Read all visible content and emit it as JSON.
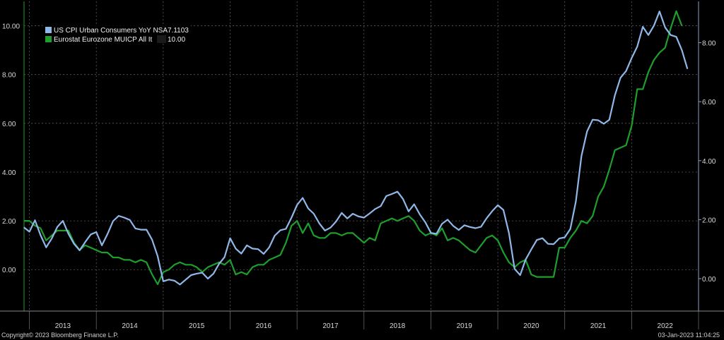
{
  "chart_data": {
    "type": "line",
    "left_axis": {
      "ylim": [
        -1.7,
        11.0
      ],
      "ticks": [
        0,
        2,
        4,
        6,
        8,
        10
      ],
      "tick_labels": [
        "0.00",
        "2.00",
        "4.00",
        "6.00",
        "8.00",
        "10.00"
      ]
    },
    "right_axis": {
      "ylim": [
        -1.1,
        9.4
      ],
      "ticks": [
        0,
        2,
        4,
        6,
        8
      ],
      "tick_labels": [
        "0.00",
        "2.00",
        "4.00",
        "6.00",
        "8.00"
      ]
    },
    "x_range": [
      2012.92,
      2023.0
    ],
    "x_labels": [
      "2013",
      "2014",
      "2015",
      "2016",
      "2017",
      "2018",
      "2019",
      "2020",
      "2021",
      "2022"
    ],
    "grid": true,
    "legend_position": "top-left",
    "series": [
      {
        "name": "US CPI Urban Consumers YoY NSA",
        "last_value": "7.1103",
        "color": "#8fb8e8",
        "axis": "right",
        "start": 2012.917,
        "step": 0.0833333,
        "values": [
          1.74,
          1.59,
          1.98,
          1.47,
          1.06,
          1.36,
          1.75,
          1.96,
          1.52,
          1.18,
          0.96,
          1.24,
          1.5,
          1.58,
          1.13,
          1.51,
          1.95,
          2.13,
          2.07,
          1.99,
          1.7,
          1.66,
          1.66,
          1.32,
          0.76,
          -0.09,
          -0.03,
          -0.07,
          -0.2,
          -0.04,
          0.12,
          0.17,
          0.2,
          0.0,
          0.17,
          0.5,
          0.73,
          1.37,
          1.02,
          0.85,
          1.13,
          1.02,
          1.0,
          0.84,
          1.06,
          1.46,
          1.64,
          1.69,
          2.07,
          2.5,
          2.74,
          2.38,
          2.2,
          1.87,
          1.63,
          1.73,
          1.94,
          2.23,
          2.04,
          2.2,
          2.11,
          2.07,
          2.21,
          2.36,
          2.46,
          2.8,
          2.87,
          2.95,
          2.7,
          2.28,
          2.52,
          2.18,
          1.91,
          1.55,
          1.52,
          1.86,
          2.0,
          1.79,
          1.65,
          1.81,
          1.75,
          1.71,
          1.76,
          2.05,
          2.29,
          2.49,
          2.33,
          1.54,
          0.33,
          0.12,
          0.65,
          0.99,
          1.31,
          1.37,
          1.18,
          1.17,
          1.36,
          1.4,
          1.68,
          2.62,
          4.16,
          4.99,
          5.39,
          5.37,
          5.25,
          5.39,
          6.22,
          6.81,
          7.04,
          7.48,
          7.87,
          8.54,
          8.26,
          8.58,
          9.06,
          8.52,
          8.26,
          8.2,
          7.75,
          7.11
        ]
      },
      {
        "name": "Eurostat Eurozone MUICP All It",
        "last_value": "10.00",
        "color": "#1e9e2c",
        "axis": "left",
        "start": 2012.917,
        "step": 0.0833333,
        "values": [
          2.0,
          2.0,
          1.8,
          1.7,
          1.2,
          1.4,
          1.6,
          1.6,
          1.6,
          1.1,
          0.8,
          1.0,
          0.9,
          0.8,
          0.7,
          0.7,
          0.5,
          0.5,
          0.4,
          0.4,
          0.3,
          0.4,
          0.3,
          -0.2,
          -0.6,
          -0.1,
          0.0,
          0.2,
          0.3,
          0.2,
          0.2,
          0.1,
          -0.1,
          0.1,
          0.2,
          0.3,
          0.2,
          0.4,
          -0.2,
          -0.1,
          -0.2,
          0.1,
          0.2,
          0.2,
          0.4,
          0.5,
          0.6,
          1.1,
          1.8,
          2.0,
          1.5,
          1.9,
          1.4,
          1.3,
          1.3,
          1.5,
          1.5,
          1.4,
          1.5,
          1.5,
          1.3,
          1.1,
          1.3,
          1.2,
          1.9,
          2.0,
          2.1,
          2.0,
          2.1,
          2.2,
          2.0,
          1.6,
          1.4,
          1.5,
          1.4,
          1.7,
          1.2,
          1.3,
          1.2,
          1.0,
          0.8,
          0.7,
          1.0,
          1.3,
          1.4,
          1.2,
          0.7,
          0.3,
          0.1,
          0.3,
          0.4,
          -0.2,
          -0.3,
          -0.3,
          -0.3,
          -0.3,
          0.9,
          0.9,
          1.3,
          1.6,
          2.0,
          1.9,
          2.2,
          3.0,
          3.4,
          4.1,
          4.9,
          5.0,
          5.1,
          5.9,
          7.4,
          7.4,
          8.1,
          8.6,
          8.9,
          9.1,
          9.9,
          10.6,
          10.0
        ]
      }
    ]
  },
  "legend": {
    "us_label": "US CPI Urban Consumers YoY NSA",
    "us_value": "7.1103",
    "eu_label": "Eurostat Eurozone MUICP All It",
    "eu_value": "10.00"
  },
  "footer": {
    "copyright": "Copyright© 2023 Bloomberg Finance L.P.",
    "timestamp": "03-Jan-2023 11:04:25"
  }
}
